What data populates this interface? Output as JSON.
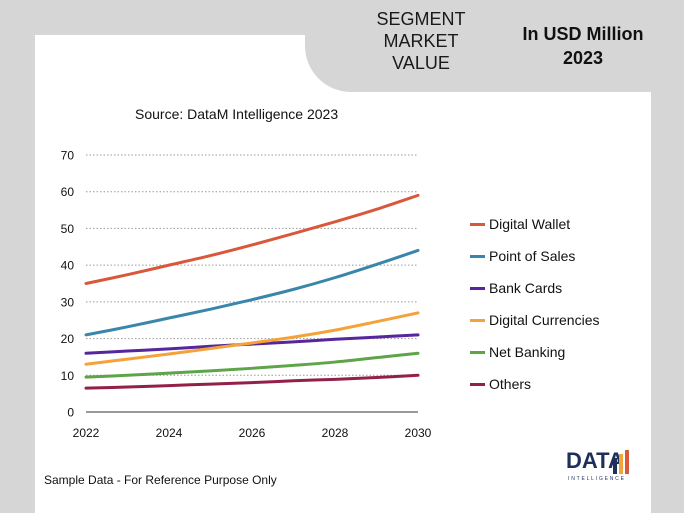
{
  "header": {
    "segment_title": "SEGMENT\nMARKET\nVALUE",
    "unit_title": "In USD Million\n2023"
  },
  "source": "Source: DataM Intelligence  2023",
  "footer_note": "Sample Data - For Reference Purpose Only",
  "logo": {
    "word": "DATA",
    "sub": "INTELLIGENCE"
  },
  "colors": {
    "gridline": "#9a9a9a",
    "axis": "#333333"
  },
  "chart_data": {
    "type": "line",
    "title": "",
    "xlabel": "",
    "ylabel": "",
    "x": [
      2022,
      2023,
      2024,
      2025,
      2026,
      2027,
      2028,
      2029,
      2030
    ],
    "x_ticks": [
      "2022",
      "2024",
      "2026",
      "2028",
      "2030"
    ],
    "xlim": [
      2022,
      2030
    ],
    "ylim": [
      0,
      70
    ],
    "y_ticks": [
      "0",
      "10",
      "20",
      "30",
      "40",
      "50",
      "60",
      "70"
    ],
    "grid": true,
    "legend_position": "right",
    "series": [
      {
        "name": "Digital Wallet",
        "color": "#d9573b",
        "values": [
          35,
          37.4,
          40,
          42.6,
          45.5,
          48.6,
          51.8,
          55.2,
          59
        ]
      },
      {
        "name": "Point of Sales",
        "color": "#3a86aa",
        "values": [
          21,
          23.2,
          25.6,
          28,
          30.6,
          33.4,
          36.6,
          40.2,
          44
        ]
      },
      {
        "name": "Bank Cards",
        "color": "#55269c",
        "values": [
          16,
          16.6,
          17.2,
          17.9,
          18.5,
          19.1,
          19.8,
          20.4,
          21
        ]
      },
      {
        "name": "Digital Currencies",
        "color": "#f4a23a",
        "values": [
          13,
          14.4,
          15.8,
          17.3,
          18.8,
          20.4,
          22.3,
          24.6,
          27
        ]
      },
      {
        "name": "Net Banking",
        "color": "#5ea54a",
        "values": [
          9.5,
          10,
          10.6,
          11.2,
          11.9,
          12.7,
          13.6,
          14.8,
          16
        ]
      },
      {
        "name": "Others",
        "color": "#93204a",
        "values": [
          6.5,
          6.8,
          7.2,
          7.6,
          8.0,
          8.5,
          8.9,
          9.4,
          10
        ]
      }
    ]
  }
}
